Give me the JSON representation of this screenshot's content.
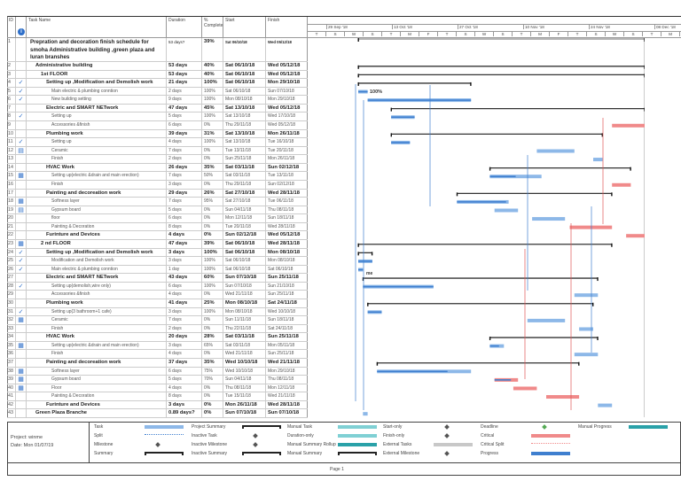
{
  "columns": {
    "id": "ID",
    "name": "Task Name",
    "duration": "Duration",
    "pct": "% Complete",
    "start": "Start",
    "finish": "Finish"
  },
  "timescale": {
    "dates": [
      "29 Sep '18",
      "13 Oct '18",
      "27 Oct '18",
      "10 Nov '18",
      "24 Nov '18",
      "08 Dec '18"
    ],
    "days": [
      "T",
      "S",
      "W",
      "S",
      "T",
      "M",
      "F",
      "T",
      "S",
      "W",
      "S",
      "T",
      "M",
      "F",
      "T",
      "S",
      "W",
      "S",
      "T",
      "M"
    ]
  },
  "colors": {
    "task": "#8db8e8",
    "progress": "#3f7fcf",
    "critical": "#f08a8a",
    "summary": "#222",
    "link_blue": "#3f7fcf",
    "link_red": "#e05555"
  },
  "progress_label": "100%",
  "milestone_label": "me",
  "tasks": [
    {
      "id": "1",
      "ind": "",
      "name": "Prepration and decoration finish schedule for smoha Administrative building ,green plaza and luran branshes",
      "dur": "53 days?",
      "pct": "39%",
      "start": "Sat 06/10/18",
      "finish": "Wed 05/12/18",
      "lvl": 0,
      "type": "project"
    },
    {
      "id": "2",
      "ind": "",
      "name": "Administrative building",
      "dur": "53 days",
      "pct": "40%",
      "start": "Sat 06/10/18",
      "finish": "Wed 05/12/18",
      "lvl": 1,
      "type": "summary"
    },
    {
      "id": "3",
      "ind": "",
      "name": "1st FLOOR",
      "dur": "53 days",
      "pct": "40%",
      "start": "Sat 06/10/18",
      "finish": "Wed 05/12/18",
      "lvl": 2,
      "type": "summary"
    },
    {
      "id": "4",
      "ind": "check",
      "name": "Setting up ,Modification and Demolish work",
      "dur": "21 days",
      "pct": "100%",
      "start": "Sat 06/10/18",
      "finish": "Mon 29/10/18",
      "lvl": 3,
      "type": "summary"
    },
    {
      "id": "5",
      "ind": "check",
      "name": "Main electric & plumbing conntion",
      "dur": "2 days",
      "pct": "100%",
      "start": "Sat 06/10/18",
      "finish": "Sun 07/10/18",
      "lvl": 4,
      "type": "task"
    },
    {
      "id": "6",
      "ind": "check",
      "name": "New building setting",
      "dur": "9 days",
      "pct": "100%",
      "start": "Mon 08/10/18",
      "finish": "Mon 29/10/18",
      "lvl": 4,
      "type": "task"
    },
    {
      "id": "7",
      "ind": "",
      "name": "Electric and SMART NETwork",
      "dur": "47 days",
      "pct": "45%",
      "start": "Sat 13/10/18",
      "finish": "Wed 05/12/18",
      "lvl": 3,
      "type": "summary"
    },
    {
      "id": "8",
      "ind": "check",
      "name": "Setting up",
      "dur": "5 days",
      "pct": "100%",
      "start": "Sat 13/10/18",
      "finish": "Wed 17/10/18",
      "lvl": 4,
      "type": "task"
    },
    {
      "id": "9",
      "ind": "",
      "name": "Accessories &finish",
      "dur": "6 days",
      "pct": "0%",
      "start": "Thu 29/11/18",
      "finish": "Wed 05/12/18",
      "lvl": 4,
      "type": "critical"
    },
    {
      "id": "10",
      "ind": "",
      "name": "Plumbing work",
      "dur": "39 days",
      "pct": "31%",
      "start": "Sat 13/10/18",
      "finish": "Mon 26/11/18",
      "lvl": 3,
      "type": "summary"
    },
    {
      "id": "11",
      "ind": "check",
      "name": "Setting up",
      "dur": "4 days",
      "pct": "100%",
      "start": "Sat 13/10/18",
      "finish": "Tue 16/10/18",
      "lvl": 4,
      "type": "task"
    },
    {
      "id": "12",
      "ind": "note",
      "name": "Ceramic",
      "dur": "7 days",
      "pct": "0%",
      "start": "Tue 13/11/18",
      "finish": "Tue 20/11/18",
      "lvl": 4,
      "type": "task"
    },
    {
      "id": "13",
      "ind": "",
      "name": "Finish",
      "dur": "2 days",
      "pct": "0%",
      "start": "Sun 25/11/18",
      "finish": "Mon 26/11/18",
      "lvl": 4,
      "type": "task"
    },
    {
      "id": "14",
      "ind": "",
      "name": "HVAC Work",
      "dur": "26 days",
      "pct": "35%",
      "start": "Sat 03/11/18",
      "finish": "Sun 02/12/18",
      "lvl": 3,
      "type": "summary"
    },
    {
      "id": "15",
      "ind": "cal",
      "name": "Setting up(electric &drain and main erection)",
      "dur": "7 days",
      "pct": "50%",
      "start": "Sat 03/11/18",
      "finish": "Tue 13/11/18",
      "lvl": 4,
      "type": "task"
    },
    {
      "id": "16",
      "ind": "",
      "name": "Finish",
      "dur": "3 days",
      "pct": "0%",
      "start": "Thu 29/11/18",
      "finish": "Sun 02/12/18",
      "lvl": 4,
      "type": "critical"
    },
    {
      "id": "17",
      "ind": "",
      "name": "Painting and decoreation work",
      "dur": "29 days",
      "pct": "26%",
      "start": "Sat 27/10/18",
      "finish": "Wed 28/11/18",
      "lvl": 3,
      "type": "summary"
    },
    {
      "id": "18",
      "ind": "cal",
      "name": "Softness layer",
      "dur": "7 days",
      "pct": "95%",
      "start": "Sat 27/10/18",
      "finish": "Tue 06/11/18",
      "lvl": 4,
      "type": "task"
    },
    {
      "id": "19",
      "ind": "note",
      "name": "Gypsum board",
      "dur": "5 days",
      "pct": "0%",
      "start": "Sun 04/11/18",
      "finish": "Thu 08/11/18",
      "lvl": 4,
      "type": "task"
    },
    {
      "id": "20",
      "ind": "",
      "name": "floor",
      "dur": "6 days",
      "pct": "0%",
      "start": "Mon 12/11/18",
      "finish": "Sun 18/11/18",
      "lvl": 4,
      "type": "task"
    },
    {
      "id": "21",
      "ind": "",
      "name": "Painting & Decoration",
      "dur": "8 days",
      "pct": "0%",
      "start": "Tue 20/11/18",
      "finish": "Wed 28/11/18",
      "lvl": 4,
      "type": "critical"
    },
    {
      "id": "22",
      "ind": "",
      "name": "Furinture and Devices",
      "dur": "4 days",
      "pct": "0%",
      "start": "Sun 02/12/18",
      "finish": "Wed 05/12/18",
      "lvl": 3,
      "type": "critical"
    },
    {
      "id": "23",
      "ind": "cal",
      "name": "2 nd FLOOR",
      "dur": "47 days",
      "pct": "39%",
      "start": "Sat 06/10/18",
      "finish": "Wed 28/11/18",
      "lvl": 2,
      "type": "summary"
    },
    {
      "id": "24",
      "ind": "check",
      "name": "Setting up ,Modification and Demolish work",
      "dur": "3 days",
      "pct": "100%",
      "start": "Sat 06/10/18",
      "finish": "Mon 08/10/18",
      "lvl": 3,
      "type": "summary"
    },
    {
      "id": "25",
      "ind": "check",
      "name": "Modification and Demolish work",
      "dur": "3 days",
      "pct": "100%",
      "start": "Sat 06/10/18",
      "finish": "Mon 08/10/18",
      "lvl": 4,
      "type": "task"
    },
    {
      "id": "26",
      "ind": "check",
      "name": "Main electric & plumbing conntion",
      "dur": "1 day",
      "pct": "100%",
      "start": "Sat 06/10/18",
      "finish": "Sat 06/10/18",
      "lvl": 4,
      "type": "task"
    },
    {
      "id": "27",
      "ind": "",
      "name": "Electric and SMART NETwork",
      "dur": "43 days",
      "pct": "60%",
      "start": "Sun 07/10/18",
      "finish": "Sun 25/11/18",
      "lvl": 3,
      "type": "summary"
    },
    {
      "id": "28",
      "ind": "check",
      "name": "Setting up(demolish,wire only)",
      "dur": "6 days",
      "pct": "100%",
      "start": "Sun 07/10/18",
      "finish": "Sun 21/10/18",
      "lvl": 4,
      "type": "task"
    },
    {
      "id": "29",
      "ind": "",
      "name": "Accessories &finish",
      "dur": "4 days",
      "pct": "0%",
      "start": "Wed 21/11/18",
      "finish": "Sun 25/11/18",
      "lvl": 4,
      "type": "task"
    },
    {
      "id": "30",
      "ind": "",
      "name": "Plumbing work",
      "dur": "41 days",
      "pct": "25%",
      "start": "Mon 08/10/18",
      "finish": "Sat 24/11/18",
      "lvl": 3,
      "type": "summary"
    },
    {
      "id": "31",
      "ind": "check",
      "name": "Setting up(3 bathroom+1 cafe)",
      "dur": "3 days",
      "pct": "100%",
      "start": "Mon 08/10/18",
      "finish": "Wed 10/10/18",
      "lvl": 4,
      "type": "task"
    },
    {
      "id": "32",
      "ind": "cal",
      "name": "Ceramic",
      "dur": "7 days",
      "pct": "0%",
      "start": "Sun 11/11/18",
      "finish": "Sun 18/11/18",
      "lvl": 4,
      "type": "task"
    },
    {
      "id": "33",
      "ind": "",
      "name": "Finish",
      "dur": "2 days",
      "pct": "0%",
      "start": "Thu 22/11/18",
      "finish": "Sat 24/11/18",
      "lvl": 4,
      "type": "task"
    },
    {
      "id": "34",
      "ind": "",
      "name": "HVAC Work",
      "dur": "20 days",
      "pct": "28%",
      "start": "Sat 03/11/18",
      "finish": "Sun 25/11/18",
      "lvl": 3,
      "type": "summary"
    },
    {
      "id": "35",
      "ind": "cal",
      "name": "Setting up(electric &drain and main erection)",
      "dur": "3 days",
      "pct": "65%",
      "start": "Sat 03/11/18",
      "finish": "Mon 05/11/18",
      "lvl": 4,
      "type": "task"
    },
    {
      "id": "36",
      "ind": "",
      "name": "Finish",
      "dur": "4 days",
      "pct": "0%",
      "start": "Wed 21/11/18",
      "finish": "Sun 25/11/18",
      "lvl": 4,
      "type": "task"
    },
    {
      "id": "37",
      "ind": "",
      "name": "Painting and decoreation work",
      "dur": "37 days",
      "pct": "35%",
      "start": "Wed 10/10/18",
      "finish": "Wed 21/11/18",
      "lvl": 3,
      "type": "summary"
    },
    {
      "id": "38",
      "ind": "cal",
      "name": "Softness layer",
      "dur": "6 days",
      "pct": "75%",
      "start": "Wed 10/10/18",
      "finish": "Mon 29/10/18",
      "lvl": 4,
      "type": "task"
    },
    {
      "id": "39",
      "ind": "cal",
      "name": "Gypsum board",
      "dur": "5 days",
      "pct": "70%",
      "start": "Sun 04/11/18",
      "finish": "Thu 08/11/18",
      "lvl": 4,
      "type": "critical"
    },
    {
      "id": "40",
      "ind": "cal",
      "name": "Floor",
      "dur": "4 days",
      "pct": "0%",
      "start": "Thu 08/11/18",
      "finish": "Mon 12/11/18",
      "lvl": 4,
      "type": "critical"
    },
    {
      "id": "41",
      "ind": "",
      "name": "Painting & Decoration",
      "dur": "8 days",
      "pct": "0%",
      "start": "Tue 15/11/18",
      "finish": "Wed 21/11/18",
      "lvl": 4,
      "type": "critical"
    },
    {
      "id": "42",
      "ind": "",
      "name": "Furinture and Devices",
      "dur": "3 days",
      "pct": "0%",
      "start": "Mon 26/11/18",
      "finish": "Wed 28/11/18",
      "lvl": 3,
      "type": "task"
    },
    {
      "id": "43",
      "ind": "",
      "name": "Green Plaza Branche",
      "dur": "0.89 days?",
      "pct": "0%",
      "start": "Sun 07/10/18",
      "finish": "Sun 07/10/18",
      "lvl": 1,
      "type": "task"
    }
  ],
  "footer": {
    "project": "Project: winme",
    "date": "Date: Mon 01/07/19",
    "page": "Page 1"
  },
  "legend": [
    [
      "Task",
      "Project Summary",
      "Manual Task",
      "Start-only",
      "Deadline",
      "Manual Progress"
    ],
    [
      "Split",
      "Inactive Task",
      "Duration-only",
      "Finish-only",
      "Critical",
      ""
    ],
    [
      "Milestone",
      "Inactive Milestone",
      "Manual Summary Rollup",
      "External Tasks",
      "Critical Split",
      ""
    ],
    [
      "Summary",
      "Inactive Summary",
      "Manual Summary",
      "External Milestone",
      "Progress",
      ""
    ]
  ]
}
